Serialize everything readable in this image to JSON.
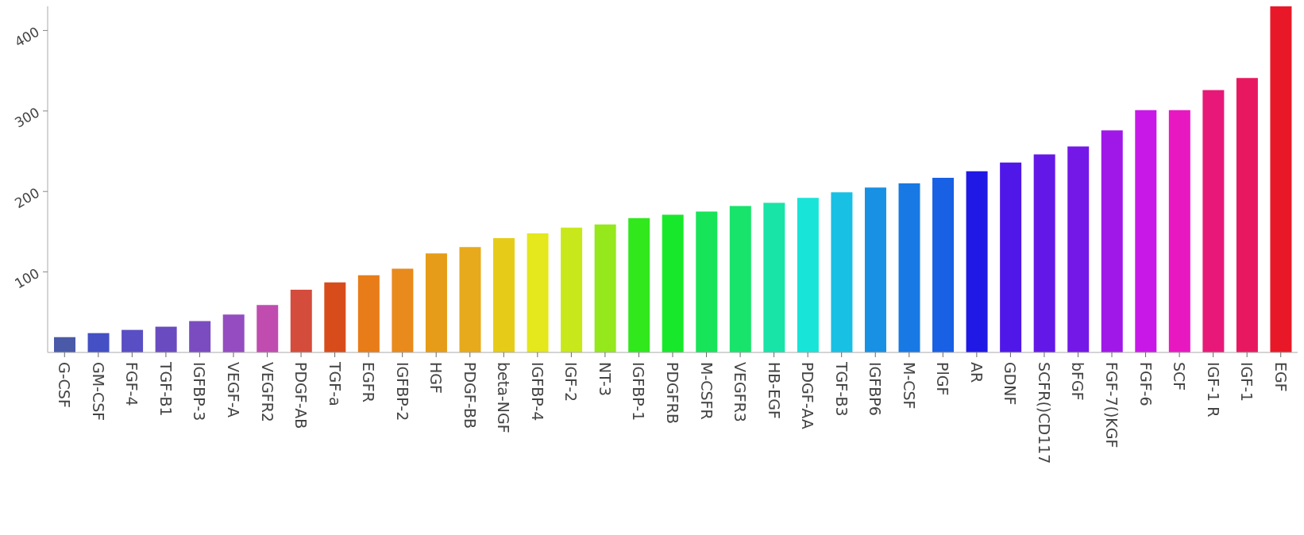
{
  "chart_data": {
    "type": "bar",
    "categories": [
      "G-CSF",
      "GM-CSF",
      "FGF-4",
      "TGF-B1",
      "IGFBP-3",
      "VEGF-A",
      "VEGFR2",
      "PDGF-AB",
      "TGF-a",
      "EGFR",
      "IGFBP-2",
      "HGF",
      "PDGF-BB",
      "beta-NGF",
      "IGFBP-4",
      "IGF-2",
      "NT-3",
      "IGFBP-1",
      "PDGFRB",
      "M-CSFR",
      "VEGFR3",
      "HB-EGF",
      "PDGF-AA",
      "TGF-B3",
      "IGFBP6",
      "M-CSF",
      "PlGF",
      "AR",
      "GDNF",
      "SCFR()CD117",
      "bFGF",
      "FGF-7()KGF",
      "FGF-6",
      "SCF",
      "IGF-1 R",
      "IGF-1",
      "EGF"
    ],
    "values": [
      19,
      24,
      28,
      32,
      39,
      47,
      59,
      78,
      87,
      96,
      104,
      123,
      131,
      142,
      148,
      155,
      159,
      167,
      171,
      175,
      182,
      186,
      192,
      199,
      205,
      210,
      217,
      225,
      236,
      246,
      256,
      276,
      301,
      301,
      326,
      341,
      430
    ],
    "colors": [
      "#4a5aa8",
      "#4450c4",
      "#5a4ec4",
      "#6a4cc0",
      "#7b4cc0",
      "#944cc0",
      "#c04cb0",
      "#d44c3c",
      "#d84c1c",
      "#e87c18",
      "#e88a1c",
      "#e69c18",
      "#e6aa1c",
      "#e6cc18",
      "#e4e81c",
      "#c8e81c",
      "#94e81c",
      "#30e81c",
      "#18e82c",
      "#18e45a",
      "#18e46c",
      "#18e4a8",
      "#18e4d8",
      "#18c0e4",
      "#1890e4",
      "#1878e4",
      "#1860e4",
      "#2018e4",
      "#5018e8",
      "#6418e8",
      "#7418e8",
      "#a018e8",
      "#c818e8",
      "#e818c0",
      "#e81878",
      "#e81860",
      "#e81828"
    ],
    "ylim": [
      0,
      430
    ],
    "yticks": [
      100,
      200,
      300,
      400
    ],
    "grid": false,
    "legend": false
  }
}
